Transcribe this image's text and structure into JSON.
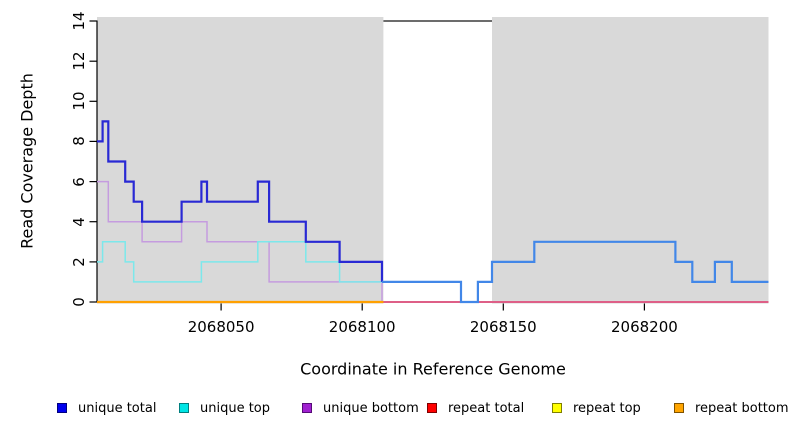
{
  "figure_title": "read coverage depth plot",
  "colors": {
    "page_background": "#ffffff",
    "panel_fill": "#d9d9d9",
    "gap_cap_line": "#3c3c3c",
    "axis": "#000000"
  },
  "chart_data": {
    "type": "line",
    "subtype": "step-coverage",
    "title": "",
    "xlabel": "Coordinate in Reference Genome",
    "ylabel": "Read Coverage Depth",
    "xlim": [
      2068006,
      2068244
    ],
    "ylim": [
      0,
      14
    ],
    "x_ticks": [
      2068050,
      2068100,
      2068150,
      2068200
    ],
    "y_ticks": [
      0,
      2,
      4,
      6,
      8,
      10,
      12,
      14
    ],
    "grid": "off",
    "legend_position": "bottom",
    "shaded_regions": [
      [
        2068006,
        2068107.5
      ],
      [
        2068146,
        2068244
      ]
    ],
    "gap_cap_line": {
      "y": 14,
      "from": 2068107.5,
      "to": 2068146
    },
    "series": [
      {
        "name": "unique bottom",
        "line_color": "#c59cdf",
        "width": 1.5,
        "steps": [
          [
            2068006,
            6
          ],
          [
            2068010,
            4
          ],
          [
            2068022,
            3
          ],
          [
            2068036,
            4
          ],
          [
            2068045,
            3
          ],
          [
            2068067,
            1
          ],
          [
            2068107,
            0
          ]
        ],
        "end": 2068244
      },
      {
        "name": "unique top",
        "line_color": "#7ce8eb",
        "width": 1.5,
        "steps": [
          [
            2068006,
            2
          ],
          [
            2068008,
            3
          ],
          [
            2068016,
            2
          ],
          [
            2068019,
            1
          ],
          [
            2068043,
            2
          ],
          [
            2068063,
            3
          ],
          [
            2068080,
            2
          ],
          [
            2068092,
            1
          ],
          [
            2068135,
            0
          ],
          [
            2068141,
            1
          ],
          [
            2068146,
            2
          ],
          [
            2068161,
            3
          ],
          [
            2068211,
            2
          ],
          [
            2068217,
            1
          ],
          [
            2068225,
            2
          ],
          [
            2068231,
            1
          ]
        ],
        "end": 2068244
      },
      {
        "name": "repeat top",
        "line_color": "#ffee00",
        "width": 1.5,
        "steps": [
          [
            2068006,
            0
          ]
        ],
        "end": 2068107.5
      },
      {
        "name": "repeat total",
        "line_color": "#de5f87",
        "width": 2,
        "steps": [
          [
            2068006,
            0
          ]
        ],
        "end": 2068244
      },
      {
        "name": "repeat bottom",
        "line_color": "#ffa000",
        "width": 2.2,
        "steps": [
          [
            2068006,
            0
          ]
        ],
        "end": 2068107.5
      },
      {
        "name": "unique total",
        "line_color": "#2929d4",
        "line_color_overlap": "#4287e8",
        "overlap_from": 2068107,
        "width": 2.2,
        "steps": [
          [
            2068006,
            8
          ],
          [
            2068008,
            9
          ],
          [
            2068010,
            7
          ],
          [
            2068016,
            6
          ],
          [
            2068019,
            5
          ],
          [
            2068022,
            4
          ],
          [
            2068036,
            5
          ],
          [
            2068043,
            6
          ],
          [
            2068045,
            5
          ],
          [
            2068063,
            6
          ],
          [
            2068067,
            4
          ],
          [
            2068080,
            3
          ],
          [
            2068092,
            2
          ],
          [
            2068107,
            1
          ],
          [
            2068135,
            0
          ],
          [
            2068141,
            1
          ],
          [
            2068146,
            2
          ],
          [
            2068161,
            3
          ],
          [
            2068211,
            2
          ],
          [
            2068217,
            1
          ],
          [
            2068225,
            2
          ],
          [
            2068231,
            1
          ]
        ],
        "end": 2068244
      }
    ]
  },
  "legend": {
    "items": [
      {
        "label": "unique total",
        "fill": "#0000ee",
        "border": "#000080"
      },
      {
        "label": "unique top",
        "fill": "#00e5e5",
        "border": "#007f7f"
      },
      {
        "label": "unique bottom",
        "fill": "#a020d0",
        "border": "#550b77"
      },
      {
        "label": "repeat total",
        "fill": "#ff0000",
        "border": "#7f0000"
      },
      {
        "label": "repeat top",
        "fill": "#ffff00",
        "border": "#7f7f00"
      },
      {
        "label": "repeat bottom",
        "fill": "#ffa500",
        "border": "#7f5200"
      }
    ]
  }
}
